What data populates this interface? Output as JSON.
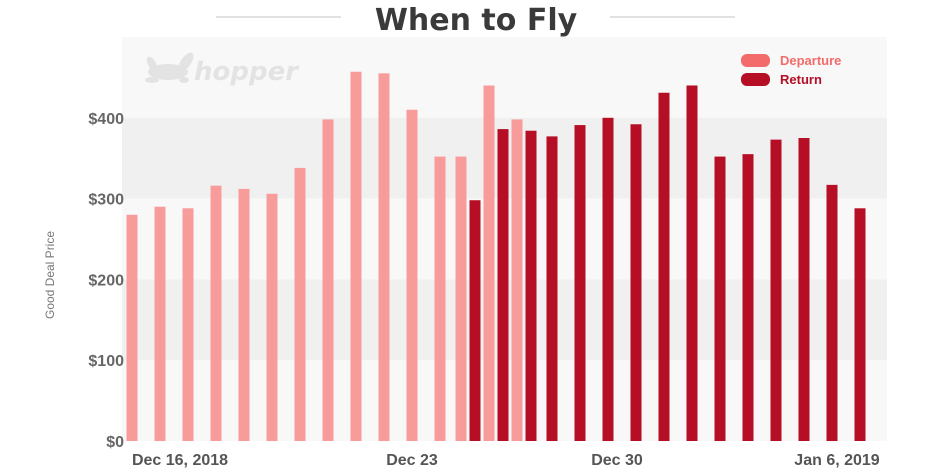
{
  "colors": {
    "departure": "#f89b9b",
    "return": "#b50e25",
    "departure_legend": "#f36b6b",
    "band_light": "#f8f8f8",
    "band_dark": "#f0f0f0"
  },
  "logo": {
    "text": "hopper",
    "icon": "bunny-icon"
  },
  "chart_data": {
    "type": "bar",
    "title": "When to Fly",
    "ylabel": "Good Deal Price",
    "xlabel": "",
    "ylim": [
      0,
      500
    ],
    "yticks": [
      {
        "value": 0,
        "label": "$0"
      },
      {
        "value": 100,
        "label": "$100"
      },
      {
        "value": 200,
        "label": "$200"
      },
      {
        "value": 300,
        "label": "$300"
      },
      {
        "value": 400,
        "label": "$400"
      }
    ],
    "x_axis": {
      "type": "date",
      "start": "2018-12-14",
      "end": "2019-01-07",
      "ticks": [
        {
          "date": "2018-12-16",
          "label": "Dec 16, 2018"
        },
        {
          "date": "2018-12-23",
          "label": "Dec 23"
        },
        {
          "date": "2018-12-30",
          "label": "Dec 30"
        },
        {
          "date": "2019-01-06",
          "label": "Jan 6, 2019"
        }
      ]
    },
    "legend": {
      "position": "top-right"
    },
    "series": [
      {
        "name": "Departure",
        "points": [
          {
            "x": "2018-12-14",
            "y": 280
          },
          {
            "x": "2018-12-15",
            "y": 290
          },
          {
            "x": "2018-12-16",
            "y": 288
          },
          {
            "x": "2018-12-17",
            "y": 316
          },
          {
            "x": "2018-12-18",
            "y": 312
          },
          {
            "x": "2018-12-19",
            "y": 306
          },
          {
            "x": "2018-12-20",
            "y": 338
          },
          {
            "x": "2018-12-21",
            "y": 398
          },
          {
            "x": "2018-12-22",
            "y": 457
          },
          {
            "x": "2018-12-23",
            "y": 455
          },
          {
            "x": "2018-12-24",
            "y": 410
          },
          {
            "x": "2018-12-25",
            "y": 352
          },
          {
            "x": "2018-12-26",
            "y": 352
          },
          {
            "x": "2018-12-27",
            "y": 440
          },
          {
            "x": "2018-12-28",
            "y": 398
          }
        ]
      },
      {
        "name": "Return",
        "points": [
          {
            "x": "2018-12-26",
            "y": 298
          },
          {
            "x": "2018-12-27",
            "y": 386
          },
          {
            "x": "2018-12-28",
            "y": 384
          },
          {
            "x": "2018-12-29",
            "y": 377
          },
          {
            "x": "2018-12-30",
            "y": 391
          },
          {
            "x": "2018-12-31",
            "y": 400
          },
          {
            "x": "2019-01-01",
            "y": 392
          },
          {
            "x": "2019-01-02",
            "y": 431
          },
          {
            "x": "2019-01-03",
            "y": 440
          },
          {
            "x": "2019-01-04",
            "y": 352
          },
          {
            "x": "2019-01-05",
            "y": 355
          },
          {
            "x": "2019-01-06",
            "y": 373
          },
          {
            "x": "2019-01-07",
            "y": 375
          },
          {
            "x": "2019-01-08",
            "y": 317
          },
          {
            "x": "2019-01-09",
            "y": 288
          }
        ]
      }
    ]
  }
}
